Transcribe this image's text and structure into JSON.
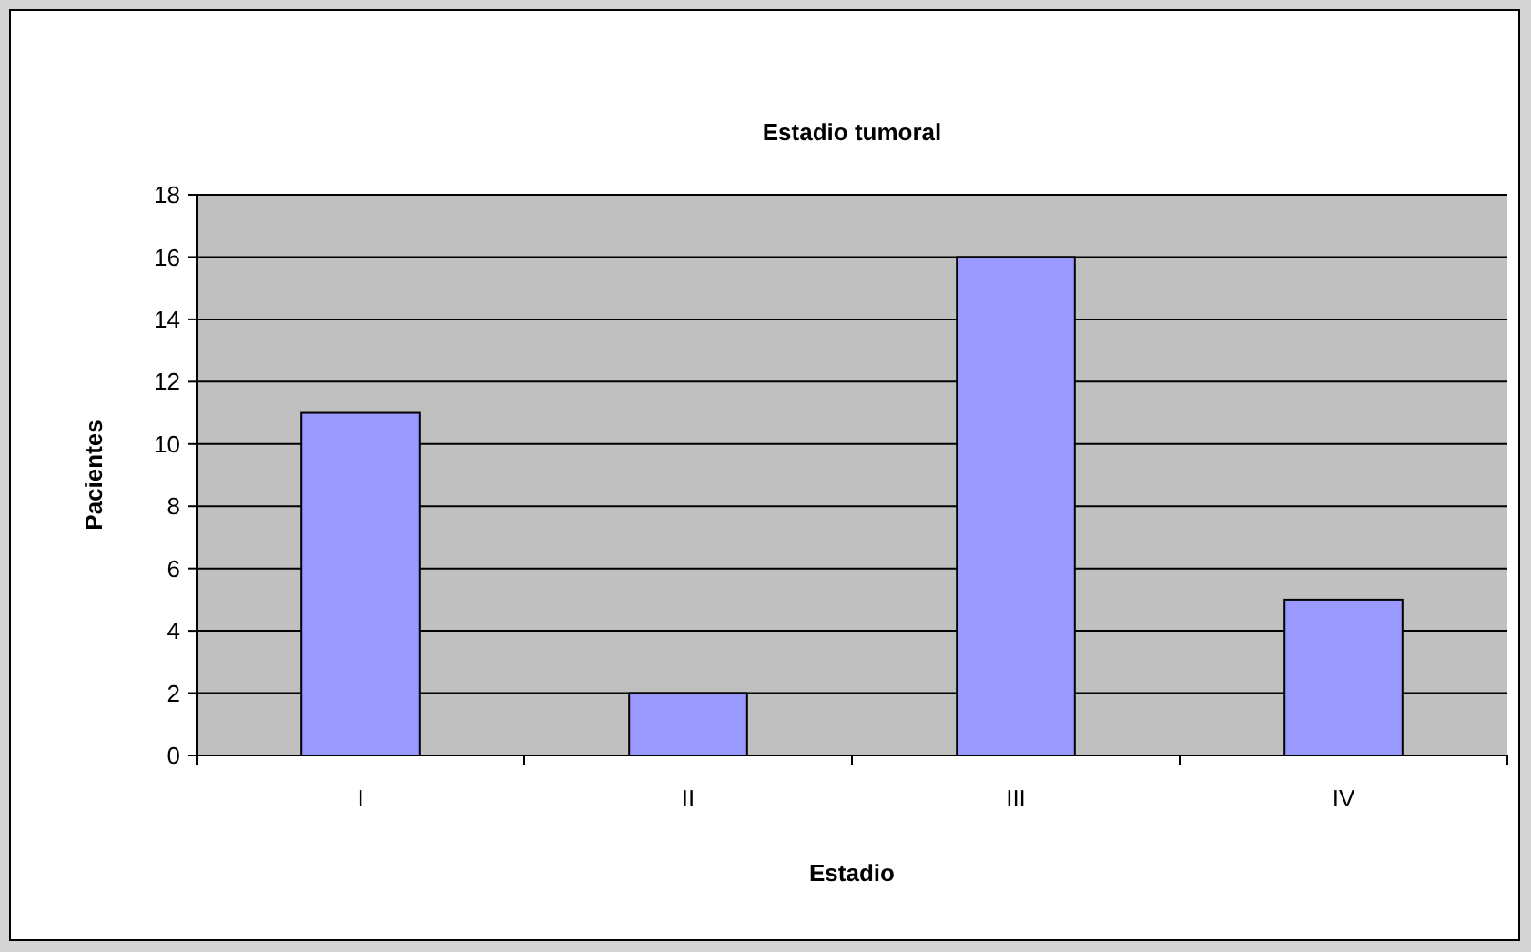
{
  "chart_data": {
    "type": "bar",
    "title": "Estadio tumoral",
    "xlabel": "Estadio",
    "ylabel": "Pacientes",
    "categories": [
      "I",
      "II",
      "III",
      "IV"
    ],
    "values": [
      11,
      2,
      16,
      5
    ],
    "color": "#9999ff",
    "ylim": [
      0,
      18
    ],
    "yticks": [
      0,
      2,
      4,
      6,
      8,
      10,
      12,
      14,
      16,
      18
    ],
    "grid": "y"
  }
}
